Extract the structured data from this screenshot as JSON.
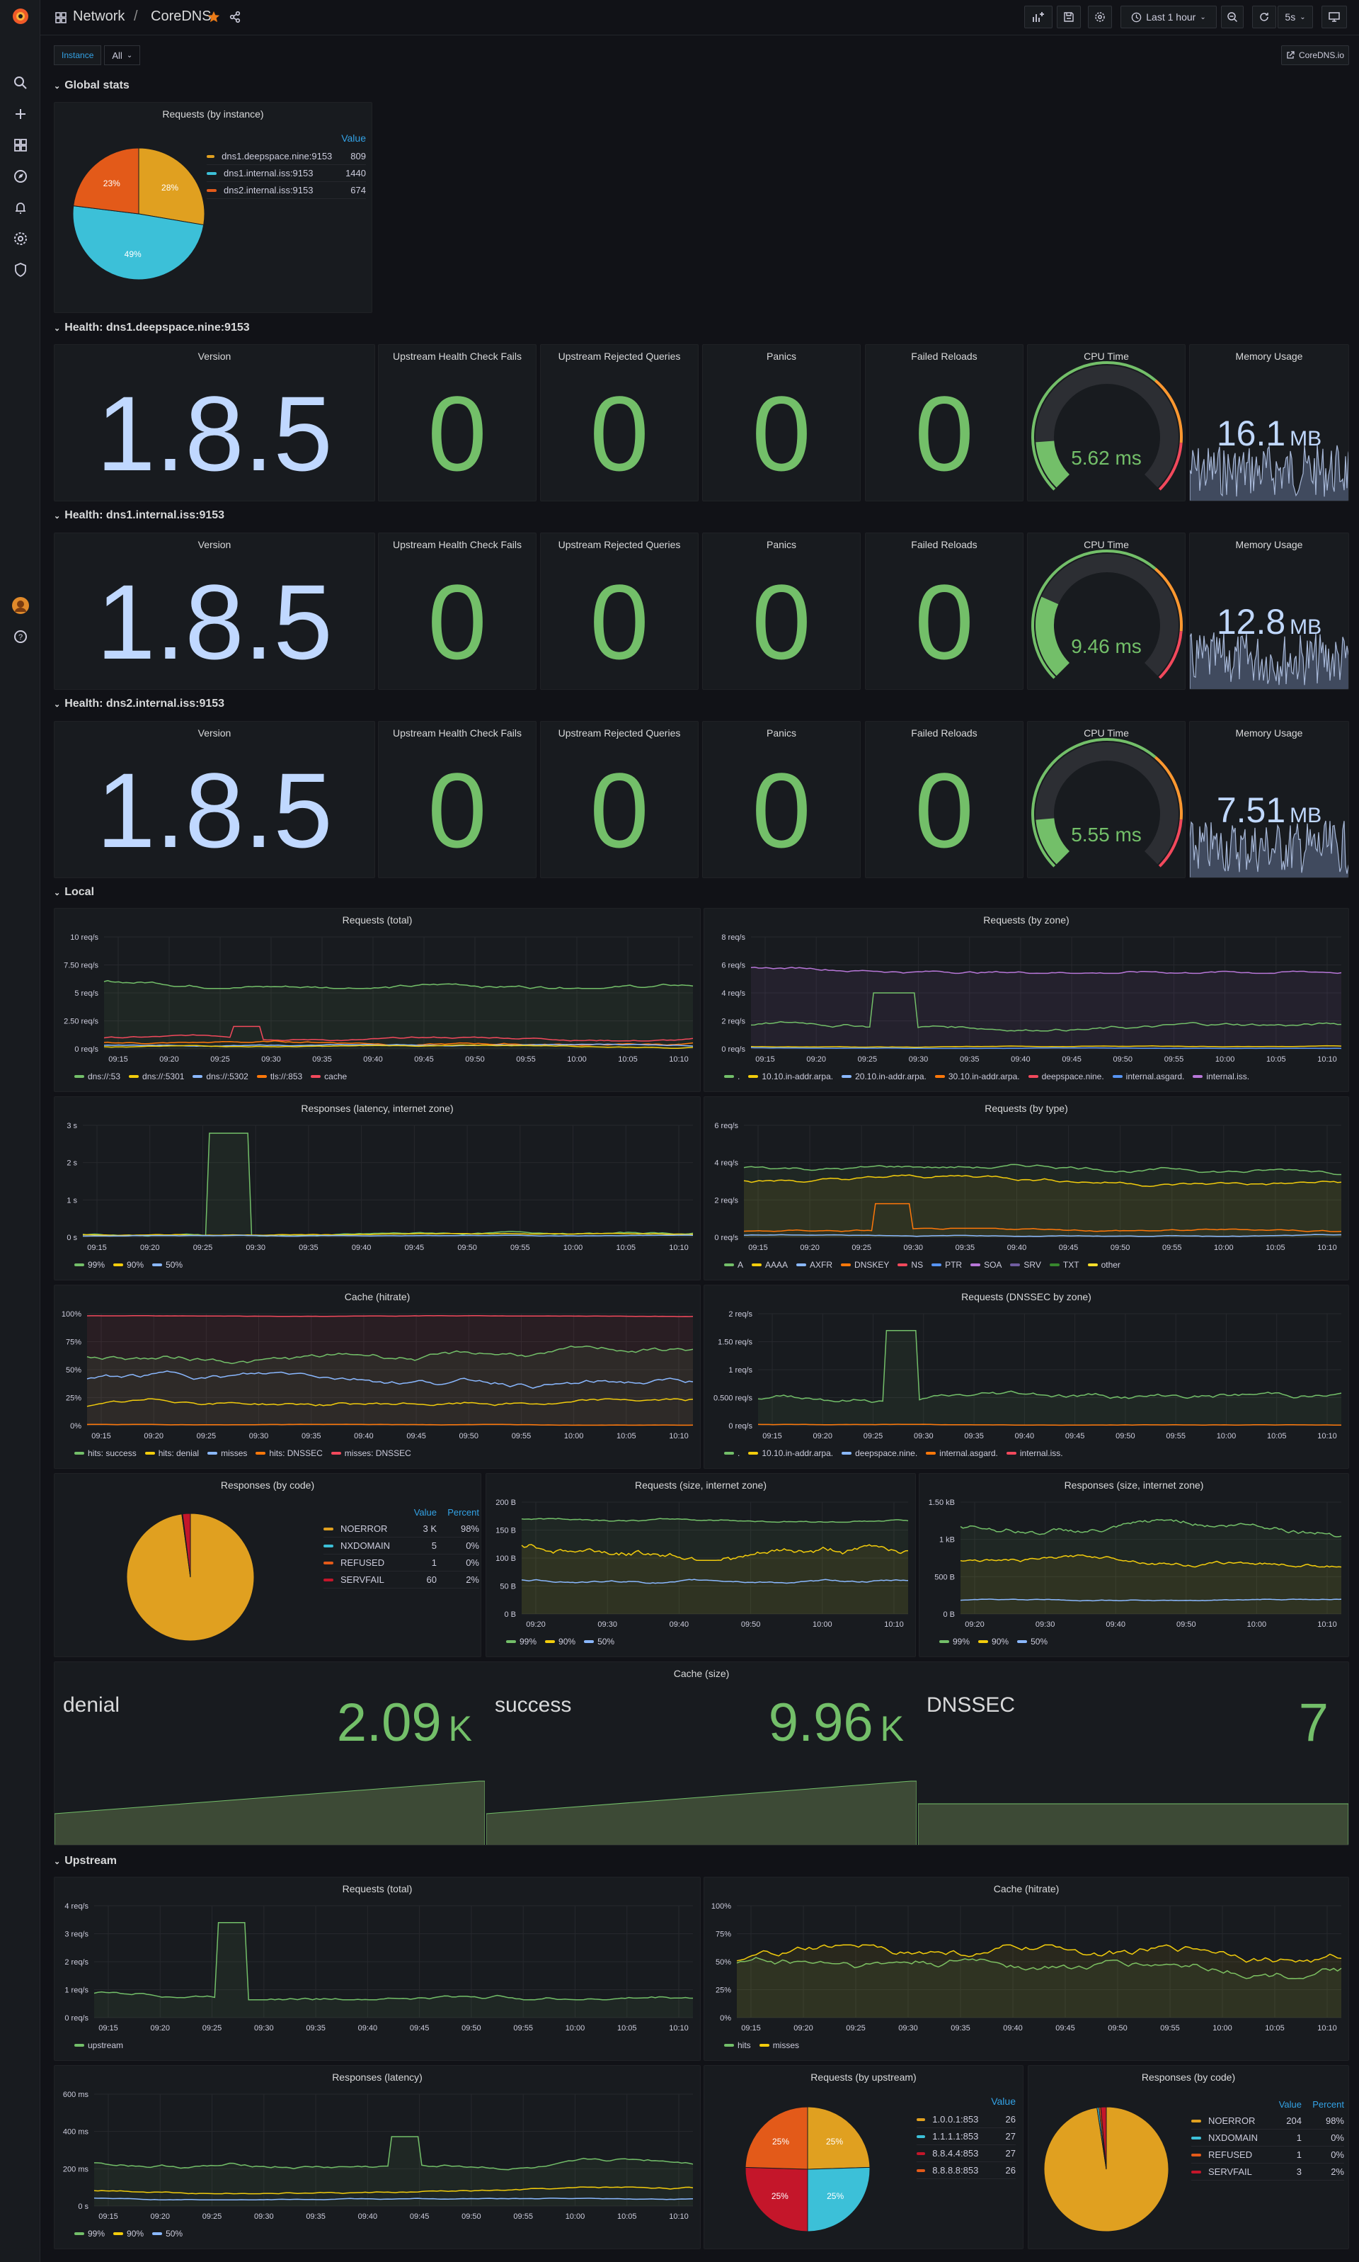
{
  "breadcrumb": {
    "folder": "Network",
    "sep": "/",
    "dashboard": "CoreDNS"
  },
  "toolbar": {
    "time_range": "Last 1 hour",
    "refresh": "5s",
    "link": "CoreDNS.io"
  },
  "variables": {
    "label": "Instance",
    "value": "All"
  },
  "rows": {
    "global": "Global stats",
    "h1": "Health: dns1.deepspace.nine:9153",
    "h2": "Health: dns1.internal.iss:9153",
    "h3": "Health: dns2.internal.iss:9153",
    "local": "Local",
    "upstream": "Upstream"
  },
  "global_pie": {
    "title": "Requests (by instance)",
    "value_header": "Value",
    "slices": [
      {
        "name": "dns1.deepspace.nine:9153",
        "value": "809",
        "pct": "28%",
        "color": "#e0a020"
      },
      {
        "name": "dns1.internal.iss:9153",
        "value": "1440",
        "pct": "49%",
        "color": "#3cc0d8"
      },
      {
        "name": "dns2.internal.iss:9153",
        "value": "674",
        "pct": "23%",
        "color": "#e35a19"
      }
    ]
  },
  "health_titles": {
    "version": "Version",
    "uhcf": "Upstream Health Check Fails",
    "urq": "Upstream Rejected Queries",
    "panics": "Panics",
    "reloads": "Failed Reloads",
    "cpu": "CPU Time",
    "mem": "Memory Usage"
  },
  "health": [
    {
      "version": "1.8.5",
      "uhcf": "0",
      "urq": "0",
      "panics": "0",
      "reloads": "0",
      "cpu": "5.62 ms",
      "cpu_frac": 0.56,
      "mem": "16.1",
      "mem_unit": "MB"
    },
    {
      "version": "1.8.5",
      "uhcf": "0",
      "urq": "0",
      "panics": "0",
      "reloads": "0",
      "cpu": "9.46 ms",
      "cpu_frac": 0.94,
      "mem": "12.8",
      "mem_unit": "MB"
    },
    {
      "version": "1.8.5",
      "uhcf": "0",
      "urq": "0",
      "panics": "0",
      "reloads": "0",
      "cpu": "5.55 ms",
      "cpu_frac": 0.55,
      "mem": "7.51",
      "mem_unit": "MB"
    }
  ],
  "local": {
    "req_total": {
      "title": "Requests (total)",
      "ylabels": [
        "10 req/s",
        "7.50 req/s",
        "5 req/s",
        "2.50 req/s",
        "0 req/s"
      ],
      "legend": [
        {
          "name": "dns://:53",
          "color": "#73bf69"
        },
        {
          "name": "dns://:5301",
          "color": "#f2cc0c"
        },
        {
          "name": "dns://:5302",
          "color": "#8ab8ff"
        },
        {
          "name": "tls://:853",
          "color": "#ff780a"
        },
        {
          "name": "cache",
          "color": "#f2495c"
        }
      ]
    },
    "req_zone": {
      "title": "Requests (by zone)",
      "ylabels": [
        "8 req/s",
        "6 req/s",
        "4 req/s",
        "2 req/s",
        "0 req/s"
      ],
      "legend": [
        {
          "name": ".",
          "color": "#73bf69"
        },
        {
          "name": "10.10.in-addr.arpa.",
          "color": "#f2cc0c"
        },
        {
          "name": "20.10.in-addr.arpa.",
          "color": "#8ab8ff"
        },
        {
          "name": "30.10.in-addr.arpa.",
          "color": "#ff780a"
        },
        {
          "name": "deepspace.nine.",
          "color": "#f2495c"
        },
        {
          "name": "internal.asgard.",
          "color": "#5794f2"
        },
        {
          "name": "internal.iss.",
          "color": "#b877d9"
        }
      ]
    },
    "resp_lat": {
      "title": "Responses (latency, internet zone)",
      "ylabels": [
        "3 s",
        "2 s",
        "1 s",
        "0 s"
      ],
      "legend": [
        {
          "name": "99%",
          "color": "#73bf69"
        },
        {
          "name": "90%",
          "color": "#f2cc0c"
        },
        {
          "name": "50%",
          "color": "#8ab8ff"
        }
      ]
    },
    "req_type": {
      "title": "Requests (by type)",
      "ylabels": [
        "6 req/s",
        "4 req/s",
        "2 req/s",
        "0 req/s"
      ],
      "legend": [
        {
          "name": "A",
          "color": "#73bf69"
        },
        {
          "name": "AAAA",
          "color": "#f2cc0c"
        },
        {
          "name": "AXFR",
          "color": "#8ab8ff"
        },
        {
          "name": "DNSKEY",
          "color": "#ff780a"
        },
        {
          "name": "NS",
          "color": "#f2495c"
        },
        {
          "name": "PTR",
          "color": "#5794f2"
        },
        {
          "name": "SOA",
          "color": "#b877d9"
        },
        {
          "name": "SRV",
          "color": "#705da0"
        },
        {
          "name": "TXT",
          "color": "#37872d"
        },
        {
          "name": "other",
          "color": "#fade2a"
        }
      ]
    },
    "cache_hit": {
      "title": "Cache (hitrate)",
      "ylabels": [
        "100%",
        "75%",
        "50%",
        "25%",
        "0%"
      ],
      "legend": [
        {
          "name": "hits: success",
          "color": "#73bf69"
        },
        {
          "name": "hits: denial",
          "color": "#f2cc0c"
        },
        {
          "name": "misses",
          "color": "#8ab8ff"
        },
        {
          "name": "hits: DNSSEC",
          "color": "#ff780a"
        },
        {
          "name": "misses: DNSSEC",
          "color": "#f2495c"
        }
      ]
    },
    "req_dnssec": {
      "title": "Requests (DNSSEC by zone)",
      "ylabels": [
        "2 req/s",
        "1.50 req/s",
        "1 req/s",
        "0.500 req/s",
        "0 req/s"
      ],
      "legend": [
        {
          "name": ".",
          "color": "#73bf69"
        },
        {
          "name": "10.10.in-addr.arpa.",
          "color": "#f2cc0c"
        },
        {
          "name": "deepspace.nine.",
          "color": "#8ab8ff"
        },
        {
          "name": "internal.asgard.",
          "color": "#ff780a"
        },
        {
          "name": "internal.iss.",
          "color": "#f2495c"
        }
      ]
    },
    "resp_code": {
      "title": "Responses (by code)",
      "value_header": "Value",
      "pct_header": "Percent",
      "rows": [
        {
          "name": "NOERROR",
          "value": "3 K",
          "pct": "98%",
          "color": "#e0a020"
        },
        {
          "name": "NXDOMAIN",
          "value": "5",
          "pct": "0%",
          "color": "#3cc0d8"
        },
        {
          "name": "REFUSED",
          "value": "1",
          "pct": "0%",
          "color": "#e35a19"
        },
        {
          "name": "SERVFAIL",
          "value": "60",
          "pct": "2%",
          "color": "#c4162a"
        }
      ]
    },
    "req_size": {
      "title": "Requests (size, internet zone)",
      "ylabels": [
        "200 B",
        "150 B",
        "100 B",
        "50 B",
        "0 B"
      ],
      "legend": [
        {
          "name": "99%",
          "color": "#73bf69"
        },
        {
          "name": "90%",
          "color": "#f2cc0c"
        },
        {
          "name": "50%",
          "color": "#8ab8ff"
        }
      ]
    },
    "resp_size": {
      "title": "Responses (size, internet zone)",
      "ylabels": [
        "1.50 kB",
        "1 kB",
        "500 B",
        "0 B"
      ],
      "legend": [
        {
          "name": "99%",
          "color": "#73bf69"
        },
        {
          "name": "90%",
          "color": "#f2cc0c"
        },
        {
          "name": "50%",
          "color": "#8ab8ff"
        }
      ]
    },
    "cache_size": {
      "title": "Cache (size)",
      "items": [
        {
          "label": "denial",
          "value": "2.09",
          "unit": "K"
        },
        {
          "label": "success",
          "value": "9.96",
          "unit": "K"
        },
        {
          "label": "DNSSEC",
          "value": "7",
          "unit": ""
        }
      ]
    }
  },
  "upstream": {
    "req_total": {
      "title": "Requests (total)",
      "ylabels": [
        "4 req/s",
        "3 req/s",
        "2 req/s",
        "1 req/s",
        "0 req/s"
      ],
      "legend": [
        {
          "name": "upstream",
          "color": "#73bf69"
        }
      ]
    },
    "cache_hit": {
      "title": "Cache (hitrate)",
      "ylabels": [
        "100%",
        "75%",
        "50%",
        "25%",
        "0%"
      ],
      "legend": [
        {
          "name": "hits",
          "color": "#73bf69"
        },
        {
          "name": "misses",
          "color": "#f2cc0c"
        }
      ]
    },
    "resp_lat": {
      "title": "Responses (latency)",
      "ylabels": [
        "600 ms",
        "400 ms",
        "200 ms",
        "0 s"
      ],
      "legend": [
        {
          "name": "99%",
          "color": "#73bf69"
        },
        {
          "name": "90%",
          "color": "#f2cc0c"
        },
        {
          "name": "50%",
          "color": "#8ab8ff"
        }
      ]
    },
    "req_upstream": {
      "title": "Requests (by upstream)",
      "value_header": "Value",
      "slices": [
        {
          "name": "1.0.0.1:853",
          "value": "26",
          "pct": "25%",
          "color": "#e0a020"
        },
        {
          "name": "1.1.1.1:853",
          "value": "27",
          "pct": "25%",
          "color": "#3cc0d8"
        },
        {
          "name": "8.8.4.4:853",
          "value": "27",
          "pct": "25%",
          "color": "#c4162a"
        },
        {
          "name": "8.8.8.8:853",
          "value": "26",
          "pct": "25%",
          "color": "#e35a19"
        }
      ]
    },
    "resp_code": {
      "title": "Responses (by code)",
      "value_header": "Value",
      "pct_header": "Percent",
      "rows": [
        {
          "name": "NOERROR",
          "value": "204",
          "pct": "98%",
          "color": "#e0a020"
        },
        {
          "name": "NXDOMAIN",
          "value": "1",
          "pct": "0%",
          "color": "#3cc0d8"
        },
        {
          "name": "REFUSED",
          "value": "1",
          "pct": "0%",
          "color": "#e35a19"
        },
        {
          "name": "SERVFAIL",
          "value": "3",
          "pct": "2%",
          "color": "#c4162a"
        }
      ]
    }
  },
  "xlabels_a": [
    "09:15",
    "09:20",
    "09:25",
    "09:30",
    "09:35",
    "09:40",
    "09:45",
    "09:50",
    "09:55",
    "10:00",
    "10:05",
    "10:10"
  ],
  "xlabels_b": [
    "09:20",
    "09:30",
    "09:40",
    "09:50",
    "10:00",
    "10:10"
  ]
}
